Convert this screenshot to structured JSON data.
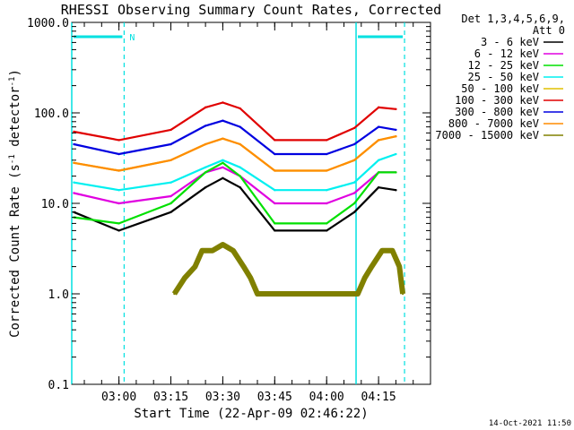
{
  "chart_data": {
    "type": "line",
    "title": "RHESSI Observing Summary Count Rates, Corrected",
    "xlabel": "Start Time (22-Apr-09 02:46:22)",
    "ylabel": "Corrected Count Rate (s⁻¹ detector⁻¹)",
    "ylabel_parts": {
      "main": "Corrected Count Rate (s",
      "sup1": "-1",
      "mid": " detector",
      "sup2": "-1",
      "end": ")"
    },
    "yscale": "log",
    "ylim": [
      0.1,
      1000
    ],
    "y_tick_labels": [
      {
        "value": 1000,
        "label": "1000.0"
      },
      {
        "value": 100,
        "label": "100.0"
      },
      {
        "value": 10,
        "label": "10.0"
      },
      {
        "value": 1,
        "label": "1.0"
      },
      {
        "value": 0.1,
        "label": "0.1"
      }
    ],
    "xlim": [
      "02:46:22",
      "04:30:00"
    ],
    "x_tick_labels": [
      "03:00",
      "03:15",
      "03:30",
      "03:45",
      "04:00",
      "04:15"
    ],
    "legend_placement": "right",
    "legend_header": [
      "Det 1,3,4,5,6,9,",
      "Att 0"
    ],
    "night_flag_label": "N",
    "night_intervals": [
      [
        "02:46:22",
        "03:01:30"
      ],
      [
        "04:08:30",
        "04:22:30"
      ]
    ],
    "timestamp": "14-Oct-2021 11:50",
    "series": [
      {
        "name": "3 - 6 keV",
        "color": "#000000",
        "x": [
          "02:47",
          "03:00",
          "03:15",
          "03:25",
          "03:30",
          "03:35",
          "03:45",
          "04:00",
          "04:08",
          "04:15",
          "04:20"
        ],
        "values": [
          8,
          5,
          8,
          15,
          19,
          15,
          5,
          5,
          8,
          15,
          14
        ]
      },
      {
        "name": "6 - 12 keV",
        "color": "#e000e0",
        "x": [
          "02:47",
          "03:00",
          "03:15",
          "03:25",
          "03:30",
          "03:35",
          "03:45",
          "04:00",
          "04:08",
          "04:15",
          "04:20"
        ],
        "values": [
          13,
          10,
          12,
          22,
          25,
          20,
          10,
          10,
          13,
          22,
          22
        ]
      },
      {
        "name": "12 - 25 keV",
        "color": "#00e000",
        "x": [
          "02:47",
          "03:00",
          "03:15",
          "03:25",
          "03:30",
          "03:35",
          "03:45",
          "04:00",
          "04:08",
          "04:15",
          "04:20"
        ],
        "values": [
          7,
          6,
          10,
          22,
          28,
          20,
          6,
          6,
          10,
          22,
          22
        ]
      },
      {
        "name": "25 - 50 keV",
        "color": "#00f0f0",
        "x": [
          "02:47",
          "03:00",
          "03:15",
          "03:25",
          "03:30",
          "03:35",
          "03:45",
          "04:00",
          "04:08",
          "04:15",
          "04:20"
        ],
        "values": [
          17,
          14,
          17,
          25,
          30,
          25,
          14,
          14,
          17,
          30,
          35
        ]
      },
      {
        "name": "50 - 100 keV",
        "color": "#e0c000",
        "x": [
          "02:47",
          "03:00",
          "03:15",
          "03:25",
          "03:30",
          "03:35",
          "03:45",
          "04:00",
          "04:08",
          "04:15",
          "04:20"
        ],
        "values": [
          28,
          23,
          30,
          45,
          52,
          45,
          23,
          23,
          30,
          50,
          55
        ]
      },
      {
        "name": "100 - 300 keV",
        "color": "#e00000",
        "x": [
          "02:47",
          "03:00",
          "03:15",
          "03:25",
          "03:30",
          "03:35",
          "03:45",
          "04:00",
          "04:08",
          "04:15",
          "04:20"
        ],
        "values": [
          62,
          50,
          65,
          115,
          130,
          112,
          50,
          50,
          68,
          115,
          110
        ]
      },
      {
        "name": "300 - 800 keV",
        "color": "#0000e0",
        "x": [
          "02:47",
          "03:00",
          "03:15",
          "03:25",
          "03:30",
          "03:35",
          "03:45",
          "04:00",
          "04:08",
          "04:15",
          "04:20"
        ],
        "values": [
          45,
          35,
          45,
          72,
          82,
          70,
          35,
          35,
          45,
          70,
          65
        ]
      },
      {
        "name": "800 - 7000 keV",
        "color": "#ff8c00",
        "x": [
          "02:47",
          "03:00",
          "03:15",
          "03:25",
          "03:30",
          "03:35",
          "03:45",
          "04:00",
          "04:08",
          "04:15",
          "04:20"
        ],
        "values": [
          28,
          23,
          30,
          45,
          52,
          45,
          23,
          23,
          30,
          50,
          55
        ]
      },
      {
        "name": "7000 - 15000 keV",
        "color": "#808000",
        "x": [
          "03:16",
          "03:19",
          "03:22",
          "03:24",
          "03:27",
          "03:30",
          "03:33",
          "03:36",
          "03:38",
          "03:40",
          "04:09",
          "04:11",
          "04:13",
          "04:16",
          "04:19",
          "04:21",
          "04:22"
        ],
        "values": [
          1,
          1.5,
          2,
          3,
          3,
          3.5,
          3,
          2,
          1.5,
          1,
          1,
          1.5,
          2,
          3,
          3,
          2,
          1
        ]
      }
    ]
  }
}
